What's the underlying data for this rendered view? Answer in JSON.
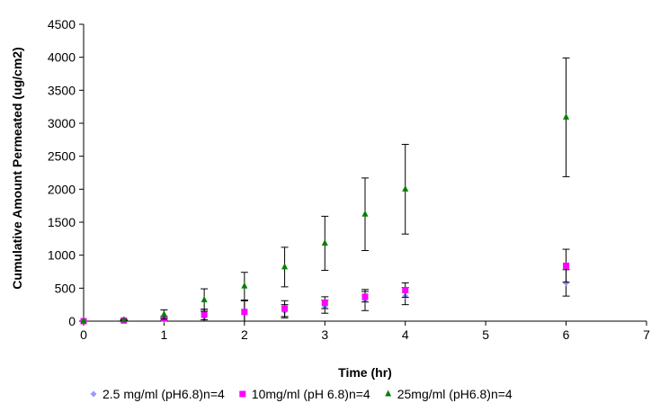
{
  "chart_data": {
    "type": "scatter",
    "title": "",
    "xlabel": "Time (hr)",
    "ylabel": "Cumulative Amount  Permeated (ug/cm2)",
    "xlim": [
      0,
      7
    ],
    "ylim": [
      0,
      4500
    ],
    "xticks": [
      "0",
      "1",
      "2",
      "3",
      "4",
      "5",
      "6",
      "7"
    ],
    "yticks": [
      "0",
      "500",
      "1000",
      "1500",
      "2000",
      "2500",
      "3000",
      "3500",
      "4000",
      "4500"
    ],
    "grid": false,
    "legend_position": "bottom",
    "series": [
      {
        "name": "2.5 mg/ml (pH6.8)n=4",
        "marker": "diamond",
        "color": "#9999ff",
        "x": [
          0,
          0.5,
          1,
          1.5,
          2,
          2.5,
          3,
          3.5,
          4,
          6
        ],
        "y": [
          0,
          5,
          20,
          60,
          120,
          150,
          220,
          320,
          380,
          580
        ],
        "err": [
          0,
          5,
          30,
          120,
          190,
          100,
          100,
          160,
          130,
          200
        ]
      },
      {
        "name": "10mg/ml (pH 6.8)n=4",
        "marker": "square",
        "color": "#ff00ff",
        "x": [
          0,
          0.5,
          1,
          1.5,
          2,
          2.5,
          3,
          3.5,
          4,
          6
        ],
        "y": [
          0,
          10,
          40,
          100,
          140,
          190,
          280,
          370,
          470,
          840
        ],
        "err": [
          0,
          5,
          30,
          80,
          170,
          120,
          90,
          80,
          110,
          250
        ]
      },
      {
        "name": "25mg/ml (pH6.8)n=4",
        "marker": "triangle",
        "color": "#008000",
        "x": [
          0,
          0.5,
          1,
          1.5,
          2,
          2.5,
          3,
          3.5,
          4,
          6
        ],
        "y": [
          0,
          15,
          100,
          320,
          530,
          820,
          1180,
          1620,
          2000,
          3090
        ],
        "err": [
          0,
          10,
          70,
          170,
          210,
          300,
          410,
          550,
          680,
          900
        ]
      }
    ]
  }
}
